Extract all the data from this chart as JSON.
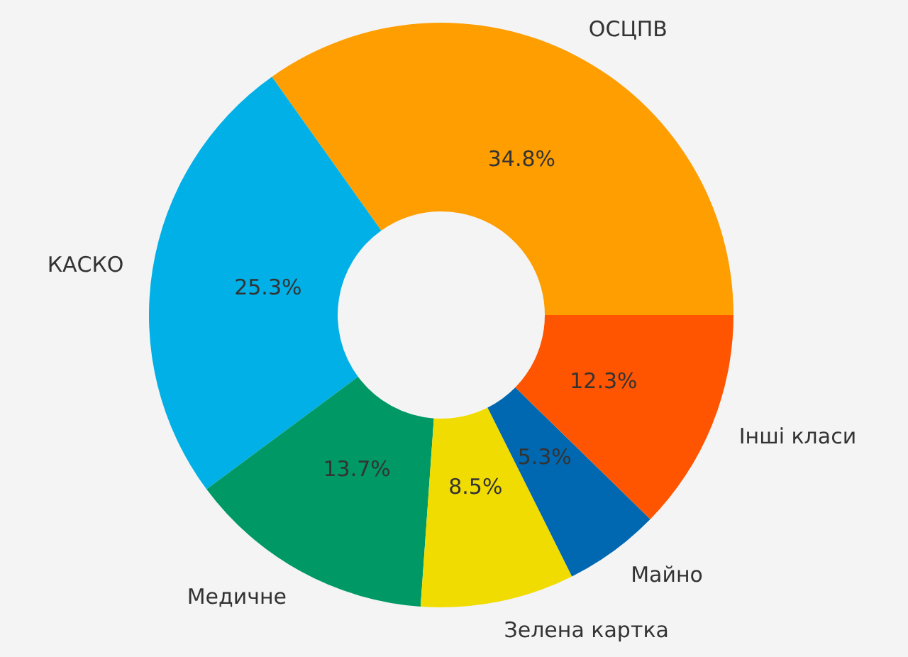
{
  "chart_data": {
    "type": "donut",
    "categories": [
      "ОСЦПВ",
      "КАСКО",
      "Медичне",
      "Зелена картка",
      "Майно",
      "Інші класи"
    ],
    "values": [
      34.8,
      25.3,
      13.7,
      8.5,
      5.3,
      12.3
    ],
    "colors": [
      "#ff9e00",
      "#00b0e6",
      "#009966",
      "#f0dc00",
      "#0068b0",
      "#ff5500"
    ],
    "value_labels": [
      "34.8%",
      "25.3%",
      "13.7%",
      "8.5%",
      "5.3%",
      "12.3%"
    ],
    "legend": false
  }
}
